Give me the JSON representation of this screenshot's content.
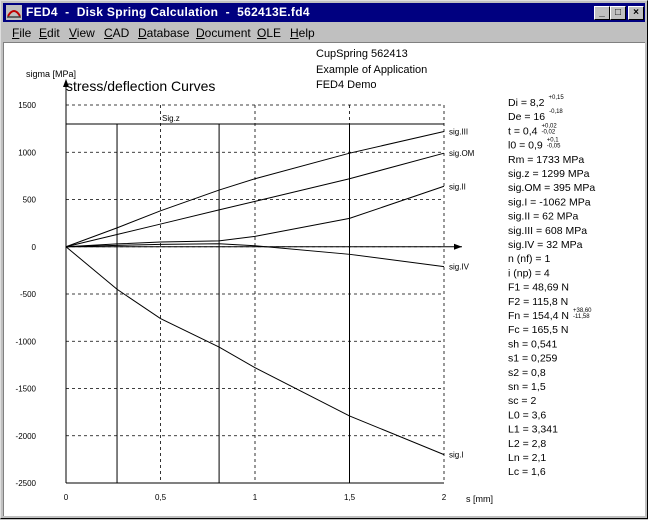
{
  "window": {
    "title": "FED4  -  Disk Spring Calculation  -  562413E.fd4",
    "minimize_glyph": "_",
    "maximize_glyph": "□",
    "close_glyph": "×"
  },
  "menu": [
    {
      "label": "File",
      "key": "F",
      "rest": "ile"
    },
    {
      "label": "Edit",
      "key": "E",
      "rest": "dit"
    },
    {
      "label": "View",
      "key": "V",
      "rest": "iew"
    },
    {
      "label": "CAD",
      "key": "C",
      "rest": "AD"
    },
    {
      "label": "Database",
      "key": "D",
      "rest": "atabase"
    },
    {
      "label": "Document",
      "key": "D",
      "rest": "ocument"
    },
    {
      "label": "OLE",
      "key": "O",
      "rest": "LE"
    },
    {
      "label": "Help",
      "key": "H",
      "rest": "elp"
    }
  ],
  "header": {
    "line1": "CupSpring  562413",
    "line2": "Example of Application",
    "line3": "FED4 Demo"
  },
  "chart_data": {
    "type": "line",
    "title": "stress/deflection Curves",
    "ylabel": "sigma [MPa]",
    "xlabel": "s [mm]",
    "xlim": [
      0,
      2
    ],
    "ylim": [
      -2500,
      1500
    ],
    "x_ticks": [
      "0",
      "0,5",
      "1",
      "1,5",
      "2"
    ],
    "y_ticks": [
      "1500",
      "1000",
      "500",
      "0",
      "-500",
      "-1000",
      "-1500",
      "-2000",
      "-2500"
    ],
    "grid": "dashed",
    "vertical_markers": [
      0.27,
      0.81,
      1.5
    ],
    "hline": {
      "label": "Sig.z",
      "value": 1299
    },
    "series": [
      {
        "name": "sig.III",
        "x": [
          0,
          0.27,
          0.5,
          0.81,
          1.0,
          1.5,
          2.0
        ],
        "y": [
          0,
          200,
          380,
          600,
          720,
          990,
          1220
        ]
      },
      {
        "name": "sig.OM",
        "x": [
          0,
          0.27,
          0.5,
          0.81,
          1.0,
          1.5,
          2.0
        ],
        "y": [
          0,
          130,
          240,
          390,
          480,
          720,
          990
        ]
      },
      {
        "name": "sig.II",
        "x": [
          0,
          0.27,
          0.5,
          0.81,
          1.0,
          1.5,
          2.0
        ],
        "y": [
          0,
          30,
          50,
          62,
          110,
          300,
          640
        ]
      },
      {
        "name": "sig.IV",
        "x": [
          0,
          0.27,
          0.5,
          0.81,
          1.0,
          1.5,
          2.0
        ],
        "y": [
          0,
          15,
          25,
          32,
          10,
          -80,
          -210
        ]
      },
      {
        "name": "sig.I",
        "x": [
          0,
          0.27,
          0.5,
          0.81,
          1.0,
          1.5,
          2.0
        ],
        "y": [
          0,
          -450,
          -760,
          -1062,
          -1280,
          -1790,
          -2200
        ]
      }
    ]
  },
  "params": [
    {
      "text": "Di = 8,2",
      "tol": [
        "+0,15"
      ]
    },
    {
      "text": "De = 16",
      "tol": [
        "-0,18"
      ]
    },
    {
      "text": "t = 0,4",
      "tol": [
        "+0,02",
        "-0,02"
      ]
    },
    {
      "text": "l0 = 0,9",
      "tol": [
        "+0,1",
        "-0,05"
      ]
    },
    {
      "text": "Rm = 1733 MPa"
    },
    {
      "text": "sig.z = 1299 MPa"
    },
    {
      "text": "sig.OM =  395 MPa"
    },
    {
      "text": "sig.I = -1062 MPa"
    },
    {
      "text": "sig.II =  62 MPa"
    },
    {
      "text": "sig.III =  608 MPa"
    },
    {
      "text": "sig.IV =  32 MPa"
    },
    {
      "text": "n (nf) =    1"
    },
    {
      "text": "i (np) =    4"
    },
    {
      "text": "F1 = 48,69 N"
    },
    {
      "text": "F2 = 115,8 N"
    },
    {
      "text": "Fn = 154,4 N",
      "tol": [
        "+38,60",
        "-11,58"
      ]
    },
    {
      "text": "Fc = 165,5 N"
    },
    {
      "text": "sh = 0,541"
    },
    {
      "text": "s1 = 0,259"
    },
    {
      "text": "s2 = 0,8"
    },
    {
      "text": "sn = 1,5"
    },
    {
      "text": "sc = 2"
    },
    {
      "text": "L0 = 3,6"
    },
    {
      "text": "L1 = 3,341"
    },
    {
      "text": "L2 = 2,8"
    },
    {
      "text": "Ln = 2,1"
    },
    {
      "text": "Lc = 1,6"
    }
  ]
}
